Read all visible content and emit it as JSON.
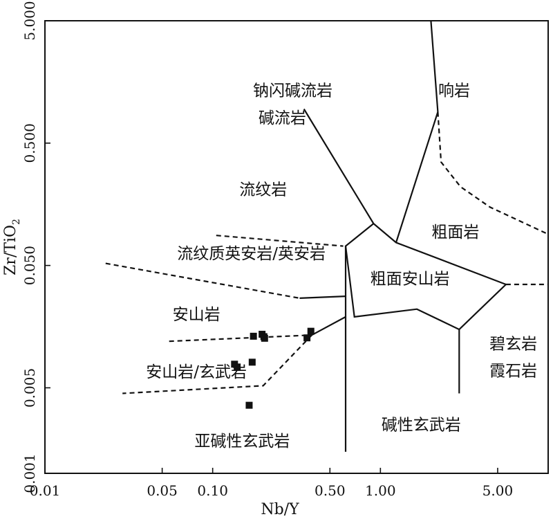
{
  "chart_data": {
    "type": "scatter",
    "xlabel": "Nb/Y",
    "ylabel": "Zr/TiO",
    "ylabel_sub": "2",
    "x_scale": "log",
    "y_scale": "log",
    "xlim": [
      0.01,
      10
    ],
    "ylim": [
      0.001,
      5
    ],
    "x_ticks": [
      {
        "value": 0.01,
        "label": "0.01"
      },
      {
        "value": 0.05,
        "label": "0.05"
      },
      {
        "value": 0.1,
        "label": "0.10"
      },
      {
        "value": 0.5,
        "label": "0.50"
      },
      {
        "value": 1.0,
        "label": "1.00"
      },
      {
        "value": 5.0,
        "label": "5.00"
      }
    ],
    "y_ticks": [
      {
        "value": 0.001,
        "label": "0.001"
      },
      {
        "value": 0.005,
        "label": "0.005"
      },
      {
        "value": 0.05,
        "label": "0.050"
      },
      {
        "value": 0.5,
        "label": "0.500"
      },
      {
        "value": 5.0,
        "label": "5.000"
      }
    ],
    "samples": [
      {
        "x": 0.135,
        "y": 0.0078
      },
      {
        "x": 0.14,
        "y": 0.0074
      },
      {
        "x": 0.172,
        "y": 0.0081
      },
      {
        "x": 0.175,
        "y": 0.0132
      },
      {
        "x": 0.197,
        "y": 0.0137
      },
      {
        "x": 0.202,
        "y": 0.0131
      },
      {
        "x": 0.204,
        "y": 0.0127
      },
      {
        "x": 0.165,
        "y": 0.0036
      },
      {
        "x": 0.365,
        "y": 0.0128
      },
      {
        "x": 0.385,
        "y": 0.0145
      }
    ],
    "field_labels": [
      {
        "text": "钠闪碱流岩",
        "x": 0.3,
        "y": 1.35
      },
      {
        "text": "碱流岩",
        "x": 0.26,
        "y": 0.81
      },
      {
        "text": "响岩",
        "x": 2.75,
        "y": 1.35
      },
      {
        "text": "流纹岩",
        "x": 0.2,
        "y": 0.21
      },
      {
        "text": "粗面岩",
        "x": 2.8,
        "y": 0.094
      },
      {
        "text": "流纹质英安岩/英安岩",
        "x": 0.17,
        "y": 0.063
      },
      {
        "text": "粗面安山岩",
        "x": 1.5,
        "y": 0.039
      },
      {
        "text": "安山岩",
        "x": 0.08,
        "y": 0.02
      },
      {
        "text": "碧玄岩",
        "x": 6.2,
        "y": 0.0115
      },
      {
        "text": "霞石岩",
        "x": 6.2,
        "y": 0.0069
      },
      {
        "text": "安山岩/玄武岩",
        "x": 0.08,
        "y": 0.0068
      },
      {
        "text": "碱性玄武岩",
        "x": 1.75,
        "y": 0.0025
      },
      {
        "text": "亚碱性玄武岩",
        "x": 0.15,
        "y": 0.00185
      }
    ],
    "boundaries": [
      {
        "style": "solid",
        "points": [
          [
            0.35,
            0.95
          ],
          [
            0.91,
            0.11
          ],
          [
            1.24,
            0.077
          ],
          [
            5.6,
            0.035
          ],
          [
            2.95,
            0.015
          ],
          [
            1.65,
            0.022
          ],
          [
            0.7,
            0.019
          ],
          [
            0.62,
            0.072
          ],
          [
            0.91,
            0.11
          ]
        ]
      },
      {
        "style": "solid",
        "points": [
          [
            0.62,
            0.072
          ],
          [
            0.62,
            0.0015
          ]
        ]
      },
      {
        "style": "solid",
        "points": [
          [
            1.24,
            0.077
          ],
          [
            2.2,
            0.9
          ],
          [
            2.0,
            5.0
          ]
        ]
      },
      {
        "style": "solid",
        "points": [
          [
            0.33,
            0.027
          ],
          [
            0.62,
            0.028
          ]
        ]
      },
      {
        "style": "solid",
        "points": [
          [
            2.95,
            0.015
          ],
          [
            2.95,
            0.0045
          ]
        ]
      },
      {
        "style": "solid",
        "points": [
          [
            0.62,
            0.019
          ],
          [
            0.39,
            0.0135
          ]
        ]
      },
      {
        "style": "dashed",
        "points": [
          [
            2.2,
            0.9
          ],
          [
            2.3,
            0.35
          ],
          [
            3.0,
            0.22
          ],
          [
            4.5,
            0.15
          ],
          [
            10.0,
            0.09
          ]
        ]
      },
      {
        "style": "dashed",
        "points": [
          [
            5.6,
            0.035
          ],
          [
            10.0,
            0.035
          ]
        ]
      },
      {
        "style": "dashed",
        "points": [
          [
            0.023,
            0.052
          ],
          [
            0.33,
            0.027
          ]
        ]
      },
      {
        "style": "dashed",
        "points": [
          [
            0.105,
            0.088
          ],
          [
            0.6,
            0.072
          ]
        ]
      },
      {
        "style": "dashed",
        "points": [
          [
            0.055,
            0.012
          ],
          [
            0.39,
            0.0135
          ]
        ]
      },
      {
        "style": "dashed",
        "points": [
          [
            0.39,
            0.0135
          ],
          [
            0.2,
            0.0052
          ],
          [
            0.029,
            0.0045
          ]
        ]
      }
    ]
  }
}
